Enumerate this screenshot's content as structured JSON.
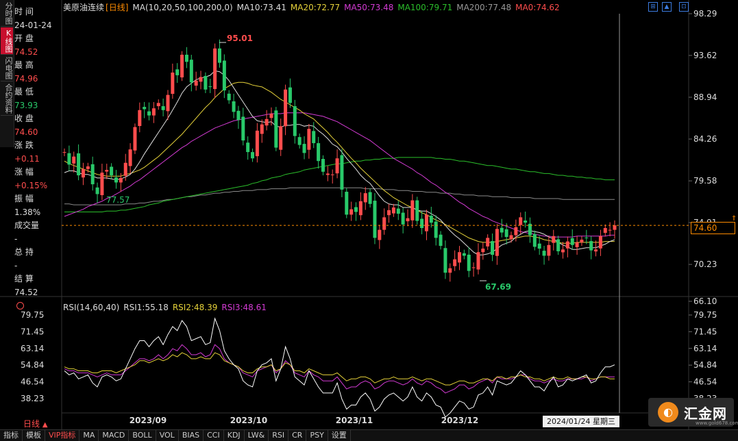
{
  "left_tabs": [
    "分时图",
    "K线图",
    "闪电图",
    "合约资料"
  ],
  "info": [
    {
      "label": "时 间",
      "value": "24-01-24",
      "color": "white"
    },
    {
      "label": "开 盘",
      "value": "74.52",
      "color": "red"
    },
    {
      "label": "最 高",
      "value": "74.96",
      "color": "red"
    },
    {
      "label": "最 低",
      "value": "73.93",
      "color": "green"
    },
    {
      "label": "收 盘",
      "value": "74.60",
      "color": "red"
    },
    {
      "label": "涨 跌",
      "value": "+0.11",
      "color": "red"
    },
    {
      "label": "涨 幅",
      "value": "+0.15%",
      "color": "red"
    },
    {
      "label": "振 幅",
      "value": "1.38%",
      "color": "white"
    },
    {
      "label": "成交量",
      "value": "-",
      "color": "white"
    },
    {
      "label": "总 持",
      "value": "-",
      "color": "white"
    },
    {
      "label": "结 算",
      "value": "74.52",
      "color": "white"
    }
  ],
  "header": {
    "name": "美原油连续",
    "period": "[日线]",
    "items": [
      {
        "text": "MA(10,20,50,100,200,0)",
        "color": "#dddddd"
      },
      {
        "text": "MA10:73.41",
        "color": "#dddddd"
      },
      {
        "text": "MA20:72.77",
        "color": "#e6d23a"
      },
      {
        "text": "MA50:73.48",
        "color": "#d43bd4"
      },
      {
        "text": "MA100:79.71",
        "color": "#2bbf2b"
      },
      {
        "text": "MA200:77.48",
        "color": "#999999"
      },
      {
        "text": "MA0:74.62",
        "color": "#ff4d4d"
      }
    ]
  },
  "rsi_header": {
    "items": [
      {
        "text": "RSI(14,60,40)",
        "color": "#dddddd"
      },
      {
        "text": "RSI1:55.18",
        "color": "#dddddd"
      },
      {
        "text": "RSI2:48.39",
        "color": "#e6d23a"
      },
      {
        "text": "RSI3:48.61",
        "color": "#d43bd4"
      }
    ]
  },
  "price_axis": [
    "98.29",
    "93.62",
    "88.94",
    "84.26",
    "79.58",
    "74.91",
    "70.23",
    "66.10"
  ],
  "rsi_axis": [
    "79.75",
    "71.45",
    "63.14",
    "54.84",
    "46.54",
    "38.23"
  ],
  "x_axis": [
    "2023/09",
    "2023/10",
    "2023/11",
    "2023/12",
    "2"
  ],
  "current_price": "74.60",
  "annotations": {
    "high": "95.01",
    "low": "67.69",
    "mid_low": "77.57"
  },
  "cursor_date": "2024/01/24 星期三",
  "period_label": "日线",
  "toolbar": [
    "指标",
    "模板",
    "VIP指标",
    "MA",
    "MACD",
    "BOLL",
    "VOL",
    "BIAS",
    "CCI",
    "KDJ",
    "LW&",
    "RSI",
    "CR",
    "PSY",
    "设置"
  ],
  "logo": {
    "text": "汇金网",
    "sub": "www.gold678.com"
  },
  "colors": {
    "up": "#ff4d4d",
    "down": "#29c96a",
    "bg": "#000000"
  },
  "chart_data": {
    "type": "candlestick",
    "closes": [
      82.8,
      81.4,
      82.3,
      80.2,
      80.9,
      81.2,
      79.2,
      78.1,
      80.5,
      80.8,
      80.2,
      79.4,
      79.9,
      81.6,
      83.1,
      85.6,
      87.5,
      87.6,
      86.9,
      87.7,
      88.3,
      87.5,
      89.2,
      91.7,
      91.4,
      93.7,
      92.9,
      90.6,
      90.8,
      91.2,
      89.8,
      90.1,
      94.4,
      92.8,
      89.7,
      88.6,
      87.3,
      86.4,
      84.1,
      82.8,
      82.1,
      85.2,
      85.9,
      86.5,
      87.1,
      83.3,
      85.7,
      89.8,
      88.3,
      84.6,
      83.6,
      82.7,
      85.4,
      83.8,
      81.8,
      80.6,
      80.4,
      80.3,
      82.1,
      78.6,
      75.8,
      76.4,
      76.1,
      77.3,
      78.2,
      77.0,
      73.2,
      74.1,
      75.5,
      76.3,
      76.6,
      75.9,
      74.7,
      75.4,
      77.4,
      75.1,
      74.3,
      75.8,
      74.9,
      73.2,
      72.3,
      69.3,
      69.8,
      70.8,
      71.6,
      71.2,
      69.5,
      69.9,
      71.6,
      72.0,
      73.2,
      71.3,
      74.2,
      73.8,
      73.3,
      73.5,
      74.4,
      75.5,
      74.9,
      73.5,
      72.2,
      72.0,
      71.2,
      72.4,
      73.4,
      71.7,
      71.9,
      72.8,
      72.4,
      72.7,
      73.0,
      73.2,
      71.8,
      71.9,
      73.4,
      74.3,
      74.1,
      74.6
    ],
    "ma10": [
      80.5,
      80.7,
      80.7,
      80.5,
      80.3,
      80.3,
      80.1,
      79.9,
      79.9,
      79.9,
      79.8,
      79.7,
      79.8,
      80.0,
      80.3,
      80.9,
      81.7,
      82.6,
      83.4,
      84.2,
      85.0,
      85.8,
      86.6,
      87.5,
      88.4,
      89.4,
      90.1,
      90.5,
      90.9,
      91.1,
      91.2,
      91.4,
      91.9,
      91.8,
      91.4,
      90.8,
      90.0,
      89.2,
      88.4,
      87.6,
      86.8,
      86.3,
      86.2,
      86.1,
      86.2,
      85.7,
      85.6,
      85.8,
      85.8,
      85.9,
      85.9,
      85.7,
      85.8,
      85.7,
      85.2,
      84.8,
      84.3,
      83.7,
      83.4,
      82.8,
      82.1,
      81.5,
      80.9,
      80.2,
      79.7,
      79.3,
      78.6,
      77.9,
      77.3,
      77.0,
      76.9,
      76.9,
      76.6,
      76.6,
      76.6,
      76.3,
      76.2,
      76.2,
      75.9,
      75.6,
      75.2,
      74.6,
      74.0,
      73.5,
      73.1,
      72.6,
      72.1,
      71.6,
      71.3,
      71.3,
      71.4,
      71.6,
      72.0,
      72.4,
      72.6,
      72.8,
      73.3,
      73.6,
      73.9,
      74.0,
      73.9,
      73.8,
      73.6,
      73.3,
      73.1,
      72.7,
      72.4,
      72.2,
      71.9,
      71.9,
      72.0,
      72.1,
      72.1,
      72.1,
      72.3,
      72.5,
      72.8,
      73.0
    ],
    "ma20": [
      81.8,
      81.5,
      81.3,
      81.1,
      80.9,
      80.7,
      80.5,
      80.3,
      80.2,
      80.1,
      80.1,
      80.1,
      80.1,
      80.3,
      80.4,
      80.6,
      80.8,
      81.1,
      81.5,
      81.9,
      82.3,
      82.8,
      83.3,
      83.8,
      84.3,
      84.8,
      85.4,
      86.0,
      86.6,
      87.2,
      87.8,
      88.3,
      88.9,
      89.4,
      89.9,
      90.2,
      90.5,
      90.6,
      90.6,
      90.5,
      90.3,
      90.2,
      90.1,
      89.8,
      89.5,
      89.1,
      88.7,
      88.4,
      88.1,
      87.8,
      87.5,
      87.1,
      86.8,
      86.5,
      86.0,
      85.5,
      85.0,
      84.4,
      83.9,
      83.3,
      82.7,
      82.1,
      81.6,
      81.0,
      80.5,
      80.0,
      79.5,
      79.0,
      78.5,
      78.1,
      77.7,
      77.4,
      77.1,
      76.8,
      76.6,
      76.3,
      76.0,
      75.8,
      75.5,
      75.2,
      75.0,
      74.7,
      74.4,
      74.1,
      73.8,
      73.5,
      73.2,
      73.0,
      72.8,
      72.7,
      72.7,
      72.7,
      72.8,
      72.9,
      73.0,
      73.1,
      73.2,
      73.3,
      73.4,
      73.4,
      73.3,
      73.2,
      73.0,
      72.9,
      72.8,
      72.7,
      72.6,
      72.6,
      72.6,
      72.7,
      72.7,
      72.7,
      72.7,
      72.7,
      72.7,
      72.8,
      72.8,
      72.8
    ],
    "ma50": [
      75.6,
      75.8,
      76.0,
      76.2,
      76.4,
      76.7,
      76.9,
      77.1,
      77.3,
      77.6,
      77.8,
      78.1,
      78.4,
      78.7,
      79.0,
      79.4,
      79.7,
      80.1,
      80.5,
      80.9,
      81.3,
      81.7,
      82.1,
      82.5,
      82.9,
      83.3,
      83.6,
      84.0,
      84.3,
      84.6,
      84.9,
      85.2,
      85.5,
      85.7,
      85.9,
      86.1,
      86.3,
      86.4,
      86.5,
      86.6,
      86.7,
      86.8,
      86.9,
      87.0,
      87.1,
      87.1,
      87.1,
      87.2,
      87.2,
      87.2,
      87.2,
      87.2,
      87.1,
      87.0,
      86.9,
      86.8,
      86.6,
      86.4,
      86.2,
      85.9,
      85.6,
      85.3,
      85.0,
      84.7,
      84.4,
      84.1,
      83.7,
      83.3,
      82.9,
      82.5,
      82.1,
      81.8,
      81.5,
      81.2,
      80.9,
      80.5,
      80.2,
      79.8,
      79.4,
      79.1,
      78.7,
      78.3,
      78.0,
      77.6,
      77.2,
      76.9,
      76.5,
      76.2,
      75.9,
      75.6,
      75.4,
      75.1,
      74.9,
      74.7,
      74.5,
      74.3,
      74.1,
      73.9,
      73.8,
      73.7,
      73.6,
      73.5,
      73.4,
      73.4,
      73.3,
      73.3,
      73.3,
      73.3,
      73.3,
      73.4,
      73.4,
      73.4,
      73.4,
      73.4,
      73.4,
      73.4,
      73.5,
      73.5
    ],
    "ma100": [
      76.1,
      76.1,
      76.1,
      76.1,
      76.1,
      76.1,
      76.1,
      76.1,
      76.1,
      76.2,
      76.2,
      76.2,
      76.3,
      76.3,
      76.4,
      76.5,
      76.6,
      76.7,
      76.9,
      77.0,
      77.1,
      77.3,
      77.4,
      77.5,
      77.6,
      77.7,
      77.8,
      77.9,
      78.0,
      78.1,
      78.2,
      78.3,
      78.4,
      78.5,
      78.6,
      78.7,
      78.8,
      78.9,
      79.0,
      79.1,
      79.3,
      79.4,
      79.6,
      79.7,
      79.9,
      80.0,
      80.1,
      80.3,
      80.4,
      80.5,
      80.6,
      80.8,
      80.9,
      81.0,
      81.1,
      81.2,
      81.3,
      81.4,
      81.5,
      81.5,
      81.6,
      81.7,
      81.8,
      81.8,
      81.9,
      81.9,
      82.0,
      82.0,
      82.1,
      82.1,
      82.1,
      82.2,
      82.2,
      82.2,
      82.2,
      82.2,
      82.2,
      82.2,
      82.2,
      82.1,
      82.1,
      82.0,
      82.0,
      81.9,
      81.8,
      81.8,
      81.7,
      81.6,
      81.5,
      81.4,
      81.3,
      81.3,
      81.2,
      81.1,
      81.0,
      80.9,
      80.9,
      80.8,
      80.7,
      80.6,
      80.6,
      80.5,
      80.4,
      80.4,
      80.3,
      80.2,
      80.2,
      80.1,
      80.1,
      80.0,
      80.0,
      79.9,
      79.9,
      79.8,
      79.8,
      79.7,
      79.7,
      79.7
    ],
    "ma200": [
      77.0,
      77.0,
      76.9,
      76.9,
      76.9,
      76.9,
      76.9,
      76.9,
      76.9,
      76.9,
      76.9,
      76.9,
      76.9,
      77.0,
      77.0,
      77.0,
      77.1,
      77.1,
      77.2,
      77.3,
      77.3,
      77.4,
      77.5,
      77.5,
      77.6,
      77.7,
      77.8,
      77.8,
      77.9,
      78.0,
      78.0,
      78.1,
      78.2,
      78.2,
      78.3,
      78.3,
      78.4,
      78.4,
      78.5,
      78.5,
      78.5,
      78.6,
      78.6,
      78.6,
      78.7,
      78.7,
      78.7,
      78.7,
      78.8,
      78.8,
      78.8,
      78.8,
      78.8,
      78.8,
      78.8,
      78.8,
      78.8,
      78.8,
      78.8,
      78.8,
      78.8,
      78.8,
      78.8,
      78.8,
      78.7,
      78.7,
      78.7,
      78.7,
      78.6,
      78.6,
      78.6,
      78.5,
      78.5,
      78.5,
      78.4,
      78.4,
      78.4,
      78.3,
      78.3,
      78.3,
      78.2,
      78.2,
      78.2,
      78.1,
      78.1,
      78.0,
      78.0,
      78.0,
      77.9,
      77.9,
      77.9,
      77.8,
      77.8,
      77.8,
      77.8,
      77.7,
      77.7,
      77.7,
      77.7,
      77.7,
      77.6,
      77.6,
      77.6,
      77.6,
      77.6,
      77.6,
      77.5,
      77.5,
      77.5,
      77.5,
      77.5,
      77.5,
      77.5,
      77.5,
      77.5,
      77.5,
      77.5,
      77.5
    ],
    "rsi1": [
      52,
      50,
      51,
      48,
      49,
      50,
      46,
      44,
      49,
      50,
      49,
      47,
      48,
      53,
      58,
      63,
      67,
      67,
      64,
      67,
      69,
      65,
      70,
      74,
      72,
      77,
      74,
      67,
      68,
      69,
      65,
      66,
      78,
      72,
      62,
      58,
      55,
      53,
      47,
      45,
      44,
      52,
      55,
      56,
      58,
      47,
      53,
      64,
      58,
      49,
      47,
      45,
      52,
      48,
      44,
      41,
      41,
      41,
      46,
      38,
      33,
      35,
      35,
      39,
      41,
      38,
      32,
      34,
      38,
      40,
      41,
      39,
      37,
      39,
      44,
      39,
      37,
      41,
      39,
      35,
      34,
      29,
      31,
      34,
      37,
      36,
      33,
      34,
      40,
      41,
      44,
      40,
      47,
      46,
      45,
      46,
      49,
      52,
      50,
      47,
      44,
      44,
      42,
      46,
      49,
      44,
      45,
      48,
      47,
      48,
      49,
      50,
      46,
      47,
      51,
      54,
      54,
      55
    ],
    "rsi2": [
      54,
      53,
      53,
      52,
      52,
      52,
      51,
      51,
      52,
      52,
      52,
      51,
      52,
      53,
      54,
      55,
      57,
      57,
      56,
      57,
      58,
      57,
      58,
      60,
      59,
      61,
      60,
      58,
      58,
      59,
      58,
      58,
      61,
      60,
      57,
      56,
      55,
      54,
      52,
      51,
      51,
      53,
      54,
      54,
      55,
      52,
      53,
      56,
      55,
      52,
      52,
      51,
      53,
      52,
      51,
      50,
      50,
      50,
      51,
      49,
      47,
      48,
      48,
      49,
      49,
      48,
      46,
      47,
      48,
      48,
      49,
      48,
      48,
      48,
      49,
      48,
      47,
      48,
      48,
      47,
      46,
      45,
      45,
      46,
      47,
      47,
      46,
      46,
      47,
      48,
      48,
      47,
      49,
      49,
      48,
      49,
      49,
      50,
      49,
      49,
      48,
      48,
      47,
      48,
      49,
      48,
      48,
      49,
      48,
      48,
      49,
      49,
      48,
      48,
      49,
      49,
      48,
      48
    ],
    "rsi3": [
      53,
      52,
      52,
      51,
      51,
      51,
      50,
      49,
      50,
      51,
      50,
      50,
      50,
      52,
      54,
      56,
      58,
      58,
      57,
      58,
      60,
      58,
      60,
      63,
      62,
      65,
      63,
      60,
      60,
      61,
      59,
      60,
      65,
      63,
      58,
      56,
      55,
      54,
      51,
      50,
      49,
      52,
      53,
      54,
      55,
      51,
      53,
      57,
      55,
      51,
      50,
      49,
      52,
      50,
      49,
      47,
      47,
      47,
      49,
      46,
      43,
      44,
      44,
      46,
      47,
      46,
      43,
      44,
      46,
      47,
      47,
      46,
      45,
      46,
      48,
      46,
      45,
      47,
      46,
      44,
      43,
      41,
      42,
      43,
      45,
      45,
      43,
      44,
      46,
      47,
      48,
      46,
      49,
      48,
      48,
      48,
      49,
      50,
      50,
      48,
      47,
      47,
      46,
      47,
      48,
      47,
      47,
      48,
      48,
      48,
      48,
      49,
      47,
      48,
      49,
      49,
      49,
      49
    ]
  }
}
